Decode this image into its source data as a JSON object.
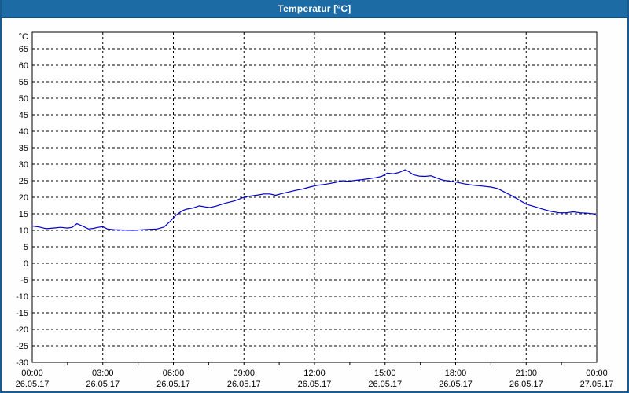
{
  "window": {
    "title": "Temperatur [°C]",
    "titlebar_color": "#1c6ba5",
    "border_color": "#1a5a8f",
    "background_color": "#fdfefd"
  },
  "chart_data": {
    "type": "line",
    "title": "Temperatur [°C]",
    "ylabel": "°C",
    "xlabel": "",
    "ylim": [
      -30,
      70
    ],
    "xlim_hours": [
      0,
      24
    ],
    "y_tick_step": 5,
    "y_ticks": [
      65,
      60,
      55,
      50,
      45,
      40,
      35,
      30,
      25,
      20,
      15,
      10,
      5,
      0,
      -5,
      -10,
      -15,
      -20,
      -25,
      -30
    ],
    "x_ticks": [
      {
        "time": "00:00",
        "date": "26.05.17"
      },
      {
        "time": "03:00",
        "date": "26.05.17"
      },
      {
        "time": "06:00",
        "date": "26.05.17"
      },
      {
        "time": "09:00",
        "date": "26.05.17"
      },
      {
        "time": "12:00",
        "date": "26.05.17"
      },
      {
        "time": "15:00",
        "date": "26.05.17"
      },
      {
        "time": "18:00",
        "date": "26.05.17"
      },
      {
        "time": "21:00",
        "date": "26.05.17"
      },
      {
        "time": "00:00",
        "date": "27.05.17"
      }
    ],
    "x_minor_tick_interval_hours": 1.5,
    "grid": "dashed",
    "legend": "none",
    "plot_background": "#ffffff",
    "grid_color": "#000000",
    "series": [
      {
        "name": "Temperatur",
        "unit": "°C",
        "color": "#0000cc",
        "points": [
          [
            0,
            11.3
          ],
          [
            0.3,
            11.0
          ],
          [
            0.6,
            10.5
          ],
          [
            0.9,
            10.7
          ],
          [
            1.2,
            10.9
          ],
          [
            1.5,
            10.7
          ],
          [
            1.7,
            10.9
          ],
          [
            1.9,
            12.0
          ],
          [
            2.1,
            11.4
          ],
          [
            2.4,
            10.4
          ],
          [
            2.6,
            10.6
          ],
          [
            2.8,
            10.9
          ],
          [
            3.0,
            11.1
          ],
          [
            3.2,
            10.4
          ],
          [
            3.5,
            10.2
          ],
          [
            3.9,
            10.1
          ],
          [
            4.3,
            10.0
          ],
          [
            4.7,
            10.2
          ],
          [
            5.0,
            10.3
          ],
          [
            5.3,
            10.4
          ],
          [
            5.6,
            11.0
          ],
          [
            5.85,
            12.6
          ],
          [
            6.1,
            14.5
          ],
          [
            6.35,
            15.8
          ],
          [
            6.55,
            16.4
          ],
          [
            6.8,
            16.7
          ],
          [
            7.1,
            17.4
          ],
          [
            7.35,
            17.1
          ],
          [
            7.55,
            16.9
          ],
          [
            7.8,
            17.3
          ],
          [
            8.2,
            18.2
          ],
          [
            8.6,
            18.9
          ],
          [
            9.0,
            20.0
          ],
          [
            9.3,
            20.4
          ],
          [
            9.6,
            20.7
          ],
          [
            9.85,
            21.0
          ],
          [
            10.1,
            21.0
          ],
          [
            10.35,
            20.6
          ],
          [
            10.6,
            21.1
          ],
          [
            10.9,
            21.6
          ],
          [
            11.2,
            22.1
          ],
          [
            11.5,
            22.5
          ],
          [
            11.8,
            23.1
          ],
          [
            12.1,
            23.6
          ],
          [
            12.35,
            23.8
          ],
          [
            12.6,
            24.1
          ],
          [
            12.9,
            24.5
          ],
          [
            13.2,
            25.0
          ],
          [
            13.45,
            24.8
          ],
          [
            13.7,
            25.1
          ],
          [
            14.0,
            25.3
          ],
          [
            14.3,
            25.6
          ],
          [
            14.6,
            25.9
          ],
          [
            14.85,
            26.3
          ],
          [
            15.1,
            27.3
          ],
          [
            15.35,
            27.1
          ],
          [
            15.6,
            27.5
          ],
          [
            15.85,
            28.3
          ],
          [
            16.0,
            27.8
          ],
          [
            16.2,
            26.8
          ],
          [
            16.45,
            26.4
          ],
          [
            16.7,
            26.3
          ],
          [
            16.95,
            26.5
          ],
          [
            17.2,
            25.8
          ],
          [
            17.45,
            25.2
          ],
          [
            17.7,
            24.9
          ],
          [
            18.0,
            24.6
          ],
          [
            18.35,
            24.1
          ],
          [
            18.7,
            23.7
          ],
          [
            19.1,
            23.4
          ],
          [
            19.5,
            23.1
          ],
          [
            19.8,
            22.6
          ],
          [
            20.1,
            21.5
          ],
          [
            20.4,
            20.4
          ],
          [
            20.7,
            19.2
          ],
          [
            21.0,
            17.9
          ],
          [
            21.35,
            17.2
          ],
          [
            21.7,
            16.4
          ],
          [
            22.0,
            15.8
          ],
          [
            22.4,
            15.3
          ],
          [
            22.7,
            15.3
          ],
          [
            23.0,
            15.6
          ],
          [
            23.3,
            15.3
          ],
          [
            23.6,
            15.2
          ],
          [
            23.85,
            15.0
          ],
          [
            24.0,
            14.5
          ]
        ]
      }
    ]
  }
}
